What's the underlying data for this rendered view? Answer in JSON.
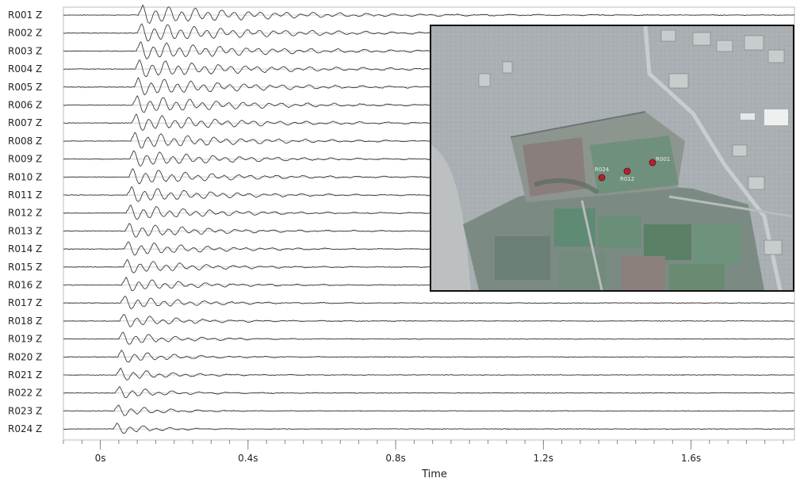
{
  "chart_data": {
    "type": "line",
    "title": "",
    "xlabel": "Time",
    "ylabel": "",
    "x_ticks": [
      "0s",
      "0.4s",
      "0.8s",
      "1.2s",
      "1.6s"
    ],
    "x_tick_values": [
      0,
      0.4,
      0.8,
      1.2,
      1.6
    ],
    "xlim": [
      -0.1,
      1.88
    ],
    "grid": true,
    "legend": "none",
    "series": [
      {
        "name": "R001 Z",
        "first_arrival_s": 0.105
      },
      {
        "name": "R002 Z",
        "first_arrival_s": 0.102
      },
      {
        "name": "R003 Z",
        "first_arrival_s": 0.099
      },
      {
        "name": "R004 Z",
        "first_arrival_s": 0.096
      },
      {
        "name": "R005 Z",
        "first_arrival_s": 0.093
      },
      {
        "name": "R006 Z",
        "first_arrival_s": 0.09
      },
      {
        "name": "R007 Z",
        "first_arrival_s": 0.087
      },
      {
        "name": "R008 Z",
        "first_arrival_s": 0.084
      },
      {
        "name": "R009 Z",
        "first_arrival_s": 0.081
      },
      {
        "name": "R010 Z",
        "first_arrival_s": 0.078
      },
      {
        "name": "R011 Z",
        "first_arrival_s": 0.075
      },
      {
        "name": "R012 Z",
        "first_arrival_s": 0.072
      },
      {
        "name": "R013 Z",
        "first_arrival_s": 0.069
      },
      {
        "name": "R014 Z",
        "first_arrival_s": 0.066
      },
      {
        "name": "R015 Z",
        "first_arrival_s": 0.063
      },
      {
        "name": "R016 Z",
        "first_arrival_s": 0.06
      },
      {
        "name": "R017 Z",
        "first_arrival_s": 0.057
      },
      {
        "name": "R018 Z",
        "first_arrival_s": 0.054
      },
      {
        "name": "R019 Z",
        "first_arrival_s": 0.051
      },
      {
        "name": "R020 Z",
        "first_arrival_s": 0.048
      },
      {
        "name": "R021 Z",
        "first_arrival_s": 0.045
      },
      {
        "name": "R022 Z",
        "first_arrival_s": 0.042
      },
      {
        "name": "R023 Z",
        "first_arrival_s": 0.039
      },
      {
        "name": "R024 Z",
        "first_arrival_s": 0.036
      }
    ]
  },
  "inset_map": {
    "marker_color": "#b3232b",
    "markers": [
      {
        "label": "R024"
      },
      {
        "label": "R012"
      },
      {
        "label": "R001"
      }
    ]
  }
}
